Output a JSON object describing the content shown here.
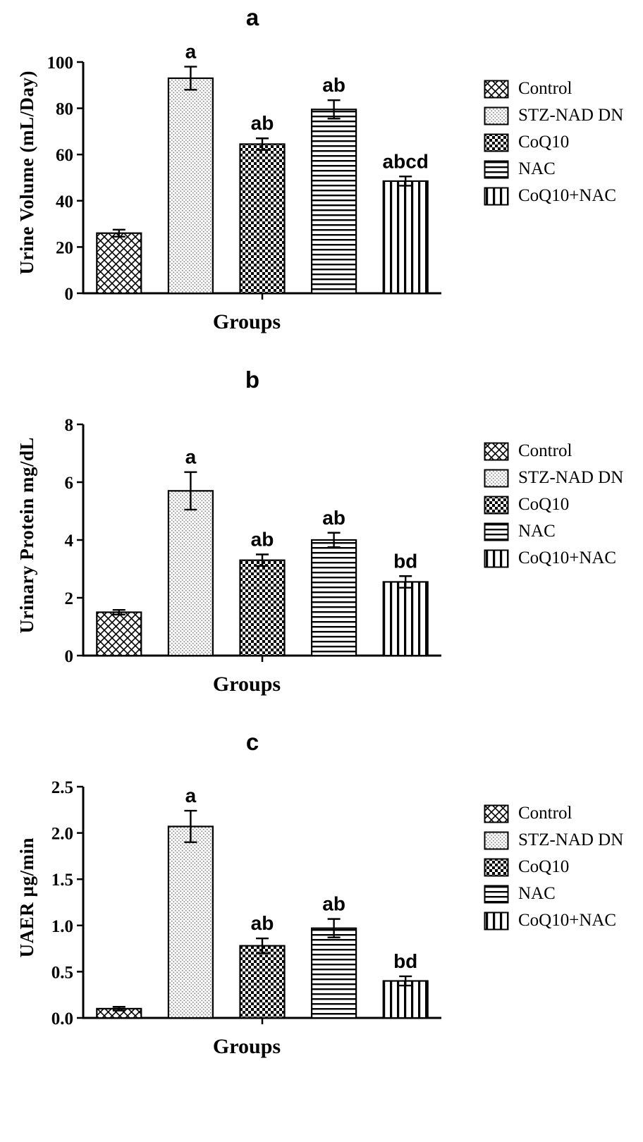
{
  "chart_data": [
    {
      "type": "bar",
      "title": "a",
      "xlabel": "Groups",
      "ylabel": "Urine Volume (mL/Day)",
      "ylim": [
        0,
        100
      ],
      "yticks": [
        "0",
        "20",
        "40",
        "60",
        "80",
        "100"
      ],
      "grid": false,
      "legend_position": "right",
      "categories": [
        "Control",
        "STZ-NAD DN",
        "CoQ10",
        "NAC",
        "CoQ10+NAC"
      ],
      "values": [
        26,
        93,
        64.5,
        79.5,
        48.5
      ],
      "errors": [
        1.5,
        5,
        2.5,
        4,
        2
      ],
      "annotations": [
        "",
        "a",
        "ab",
        "ab",
        "abcd"
      ],
      "legend": [
        "Control",
        "STZ-NAD DN",
        "CoQ10",
        "NAC",
        "CoQ10+NAC"
      ],
      "bar_patterns": [
        "diagonal-crosshatch",
        "dots",
        "checkerboard",
        "horizontal-lines",
        "vertical-lines"
      ]
    },
    {
      "type": "bar",
      "title": "b",
      "xlabel": "Groups",
      "ylabel": "Urinary Protein mg/dL",
      "ylim": [
        0,
        8
      ],
      "yticks": [
        "0",
        "2",
        "4",
        "6",
        "8"
      ],
      "grid": false,
      "legend_position": "right",
      "categories": [
        "Control",
        "STZ-NAD DN",
        "CoQ10",
        "NAC",
        "CoQ10+NAC"
      ],
      "values": [
        1.5,
        5.7,
        3.3,
        4.0,
        2.55
      ],
      "errors": [
        0.08,
        0.65,
        0.2,
        0.25,
        0.2
      ],
      "annotations": [
        "",
        "a",
        "ab",
        "ab",
        "bd"
      ],
      "legend": [
        "Control",
        "STZ-NAD DN",
        "CoQ10",
        "NAC",
        "CoQ10+NAC"
      ],
      "bar_patterns": [
        "diagonal-crosshatch",
        "dots",
        "checkerboard",
        "horizontal-lines",
        "vertical-lines"
      ]
    },
    {
      "type": "bar",
      "title": "c",
      "xlabel": "Groups",
      "ylabel": "UAER µg/min",
      "ylim": [
        0,
        2.5
      ],
      "yticks": [
        "0.0",
        "0.5",
        "1.0",
        "1.5",
        "2.0",
        "2.5"
      ],
      "grid": false,
      "legend_position": "right",
      "categories": [
        "Control",
        "STZ-NAD DN",
        "CoQ10",
        "NAC",
        "CoQ10+NAC"
      ],
      "values": [
        0.1,
        2.07,
        0.78,
        0.97,
        0.4
      ],
      "errors": [
        0.02,
        0.17,
        0.08,
        0.1,
        0.05
      ],
      "annotations": [
        "",
        "a",
        "ab",
        "ab",
        "bd"
      ],
      "legend": [
        "Control",
        "STZ-NAD DN",
        "CoQ10",
        "NAC",
        "CoQ10+NAC"
      ],
      "bar_patterns": [
        "diagonal-crosshatch",
        "dots",
        "checkerboard",
        "horizontal-lines",
        "vertical-lines"
      ]
    }
  ],
  "colors": {
    "ink": "#000000",
    "background": "#ffffff",
    "stipple_gray": "#8f8f8f"
  }
}
